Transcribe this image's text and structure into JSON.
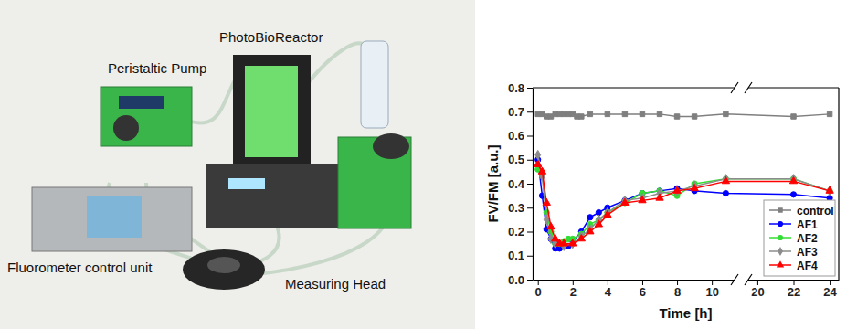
{
  "photo": {
    "labels": [
      "PhotoBioReactor",
      "Peristaltic Pump",
      "Fluorometer control unit",
      "Measuring Head"
    ]
  },
  "chart_data": {
    "type": "line",
    "xlabel": "Time [h]",
    "ylabel": "FV/FM [a.u.]",
    "xlim": [
      -0.3,
      24.5
    ],
    "ylim": [
      0,
      0.8
    ],
    "xticks": [
      0,
      2,
      4,
      6,
      8,
      10,
      20,
      22,
      24
    ],
    "yticks": [
      {
        "value": 0,
        "label": "0.0"
      },
      0.1,
      0.2,
      0.3,
      0.4,
      0.5,
      0.6,
      0.7,
      0.8
    ],
    "legend": "lower right",
    "series": [
      {
        "name": "control",
        "color": "#7f7f7f",
        "marker": "square",
        "x": [
          0,
          0.25,
          0.5,
          0.75,
          1,
          1.25,
          1.5,
          1.75,
          2,
          2.25,
          2.5,
          3,
          4,
          5,
          6,
          7,
          8,
          9,
          10.8,
          22,
          24
        ],
        "values": [
          0.69,
          0.69,
          0.68,
          0.68,
          0.69,
          0.69,
          0.69,
          0.69,
          0.69,
          0.68,
          0.68,
          0.69,
          0.69,
          0.69,
          0.69,
          0.69,
          0.68,
          0.68,
          0.69,
          0.68,
          0.69
        ]
      },
      {
        "name": "AF1",
        "color": "#0000ff",
        "marker": "circle",
        "x": [
          0,
          0.25,
          0.5,
          0.75,
          1,
          1.25,
          1.5,
          1.75,
          2,
          2.5,
          3,
          3.5,
          4,
          5,
          6,
          7,
          8,
          9,
          10.8,
          22,
          24
        ],
        "values": [
          0.5,
          0.35,
          0.21,
          0.17,
          0.13,
          0.13,
          0.14,
          0.14,
          0.16,
          0.2,
          0.26,
          0.28,
          0.3,
          0.33,
          0.36,
          0.37,
          0.38,
          0.37,
          0.36,
          0.355,
          0.34
        ]
      },
      {
        "name": "AF2",
        "color": "#33dd33",
        "marker": "circle",
        "x": [
          0,
          0.25,
          0.5,
          0.75,
          1,
          1.25,
          1.5,
          1.75,
          2,
          2.5,
          3,
          3.5,
          4,
          5,
          6,
          7,
          8,
          9,
          10.8,
          22,
          24
        ],
        "values": [
          0.46,
          0.44,
          0.28,
          0.2,
          0.15,
          0.15,
          0.16,
          0.17,
          0.17,
          0.19,
          0.23,
          0.25,
          0.28,
          0.32,
          0.36,
          0.37,
          0.35,
          0.4,
          0.42,
          0.42,
          0.37
        ]
      },
      {
        "name": "AF3",
        "color": "#8c8c8c",
        "marker": "diamond",
        "x": [
          0,
          0.25,
          0.5,
          0.75,
          1,
          1.5,
          2,
          2.5,
          3,
          3.5,
          4,
          5,
          6,
          7,
          8,
          9,
          10.8,
          22,
          24
        ],
        "values": [
          0.52,
          0.43,
          0.25,
          0.17,
          0.15,
          0.14,
          0.15,
          0.18,
          0.21,
          0.25,
          0.28,
          0.33,
          0.34,
          0.36,
          0.37,
          0.39,
          0.42,
          0.42,
          0.37
        ]
      },
      {
        "name": "AF4",
        "color": "#ff0000",
        "marker": "triangle",
        "x": [
          0,
          0.25,
          0.5,
          0.75,
          1,
          1.25,
          1.5,
          2,
          2.5,
          3,
          3.5,
          4,
          5,
          6,
          7,
          8,
          9,
          10.8,
          22,
          24
        ],
        "values": [
          0.48,
          0.45,
          0.32,
          0.22,
          0.17,
          0.15,
          0.15,
          0.15,
          0.17,
          0.2,
          0.23,
          0.27,
          0.32,
          0.33,
          0.34,
          0.37,
          0.38,
          0.41,
          0.41,
          0.37
        ]
      }
    ]
  }
}
